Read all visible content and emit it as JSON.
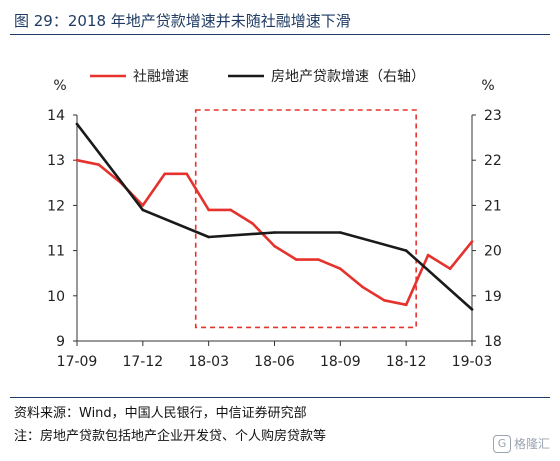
{
  "figure": {
    "title": "图 29：2018 年地产贷款增速并未随社融增速下滑",
    "source": "资料来源：Wind，中国人民银行，中信证券研究部",
    "note": "注：房地产贷款包括地产企业开发贷、个人购房贷款等",
    "watermark": "格隆汇",
    "watermark_icon": "G"
  },
  "chart_data": {
    "type": "line",
    "title": "",
    "x_ticks": [
      "17-09",
      "17-12",
      "18-03",
      "18-06",
      "18-09",
      "18-12",
      "19-03"
    ],
    "left_axis": {
      "unit": "%",
      "ylim": [
        9,
        14
      ],
      "ticks": [
        9,
        10,
        11,
        12,
        13,
        14
      ]
    },
    "right_axis": {
      "unit": "%",
      "ylim": [
        18,
        23
      ],
      "ticks": [
        18,
        19,
        20,
        21,
        22,
        23
      ]
    },
    "legend_position": "top",
    "series": [
      {
        "name": "社融增速",
        "axis": "left",
        "color": "#e5322d",
        "x": [
          "2017-09",
          "2017-10",
          "2017-11",
          "2017-12",
          "2018-01",
          "2018-02",
          "2018-03",
          "2018-04",
          "2018-05",
          "2018-06",
          "2018-07",
          "2018-08",
          "2018-09",
          "2018-10",
          "2018-11",
          "2018-12",
          "2019-01",
          "2019-02",
          "2019-03"
        ],
        "values": [
          13.0,
          12.9,
          12.5,
          12.0,
          12.7,
          12.7,
          11.9,
          11.9,
          11.6,
          11.1,
          10.8,
          10.8,
          10.6,
          10.2,
          9.9,
          9.8,
          10.9,
          10.6,
          11.2
        ]
      },
      {
        "name": "房地产贷款增速（右轴）",
        "axis": "right",
        "color": "#1a1a1a",
        "x": [
          "2017-09",
          "2017-12",
          "2018-03",
          "2018-06",
          "2018-09",
          "2018-12",
          "2019-03"
        ],
        "values": [
          22.8,
          20.9,
          20.3,
          20.4,
          20.4,
          20.0,
          18.7
        ]
      }
    ],
    "highlight_box": {
      "x_start": "2018-02",
      "x_end": "2018-12",
      "ylim": [
        9.3,
        14.0
      ],
      "color": "#e5322d",
      "style": "dashed"
    }
  }
}
